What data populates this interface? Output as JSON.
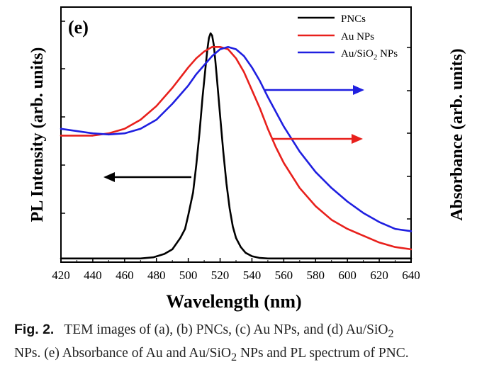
{
  "chart_data": {
    "type": "line",
    "panel_label": "(e)",
    "xlabel": "Wavelength (nm)",
    "ylabel_left": "PL Intensity (arb. units)",
    "ylabel_right": "Absorbance (arb. units)",
    "xlim": [
      420,
      640
    ],
    "ylim": [
      0,
      1
    ],
    "x_ticks": [
      420,
      440,
      460,
      480,
      500,
      520,
      540,
      560,
      580,
      600,
      620,
      640
    ],
    "legend_position": "top-right",
    "series": [
      {
        "name": "PNCs",
        "color": "#000000",
        "x": [
          420,
          470,
          478,
          485,
          490,
          495,
          498,
          500,
          503,
          505,
          507,
          509,
          511,
          512,
          513,
          514,
          515,
          516,
          517,
          518,
          520,
          522,
          524,
          526,
          528,
          530,
          533,
          536,
          540,
          545,
          550,
          560,
          640
        ],
        "y": [
          0.01,
          0.01,
          0.015,
          0.03,
          0.05,
          0.1,
          0.14,
          0.2,
          0.3,
          0.42,
          0.56,
          0.72,
          0.86,
          0.93,
          0.98,
          1.0,
          0.99,
          0.95,
          0.88,
          0.8,
          0.64,
          0.48,
          0.34,
          0.23,
          0.15,
          0.1,
          0.06,
          0.035,
          0.02,
          0.012,
          0.01,
          0.01,
          0.01
        ]
      },
      {
        "name": "Au NPs",
        "color": "#e8201c",
        "x": [
          420,
          440,
          450,
          460,
          470,
          480,
          490,
          500,
          505,
          510,
          515,
          520,
          525,
          530,
          535,
          540,
          545,
          550,
          555,
          560,
          570,
          580,
          590,
          600,
          610,
          620,
          630,
          640
        ],
        "y": [
          0.55,
          0.55,
          0.56,
          0.58,
          0.62,
          0.68,
          0.76,
          0.85,
          0.89,
          0.92,
          0.94,
          0.94,
          0.93,
          0.89,
          0.83,
          0.75,
          0.67,
          0.58,
          0.5,
          0.43,
          0.32,
          0.24,
          0.18,
          0.14,
          0.11,
          0.08,
          0.06,
          0.05
        ]
      },
      {
        "name": "Au/SiO2 NPs",
        "color": "#1f1fe0",
        "x": [
          420,
          440,
          450,
          460,
          470,
          480,
          490,
          500,
          505,
          510,
          515,
          520,
          525,
          530,
          535,
          540,
          545,
          550,
          560,
          570,
          580,
          590,
          600,
          610,
          620,
          630,
          640
        ],
        "y": [
          0.58,
          0.56,
          0.555,
          0.56,
          0.58,
          0.62,
          0.69,
          0.77,
          0.82,
          0.86,
          0.9,
          0.93,
          0.94,
          0.93,
          0.9,
          0.85,
          0.79,
          0.72,
          0.59,
          0.48,
          0.39,
          0.32,
          0.26,
          0.21,
          0.17,
          0.14,
          0.13
        ]
      }
    ]
  },
  "caption": {
    "fig_label": "Fig. 2.",
    "text_line1_a": "TEM images of (a), (b) PNCs, (c) Au NPs, and (d) Au/SiO",
    "text_line1_sub": "2",
    "text_line2_a": "NPs. (e) Absorbance of Au and Au/SiO",
    "text_line2_sub": "2",
    "text_line2_b": " NPs and PL spectrum of PNC."
  },
  "legend": {
    "items": [
      {
        "label": "PNCs",
        "color": "#000000"
      },
      {
        "label": "Au NPs",
        "color": "#e8201c"
      },
      {
        "label": "Au/SiO",
        "sub": "2",
        "label_tail": " NPs",
        "color": "#1f1fe0"
      }
    ]
  }
}
